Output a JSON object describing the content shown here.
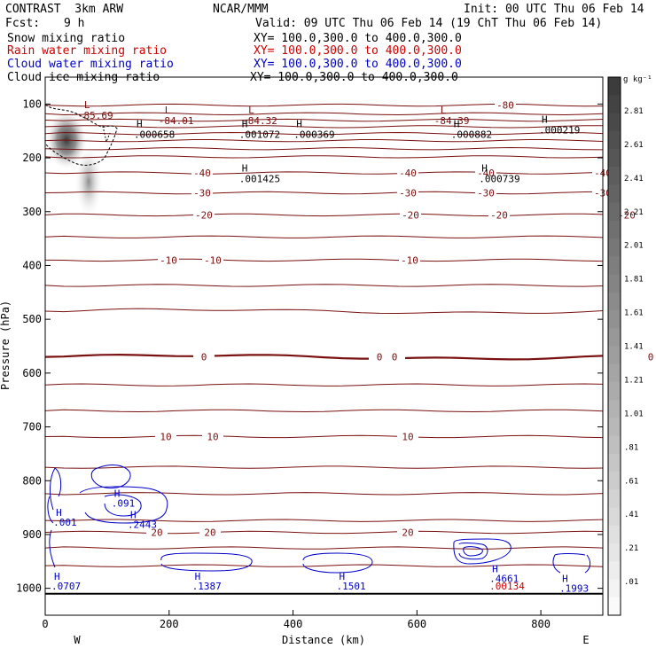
{
  "header": {
    "model": "CONTRAST  3km ARW",
    "center": "NCAR/MMM",
    "init": "Init: 00 UTC Thu 06 Feb 14",
    "fcst_label": "Fcst:",
    "fcst_value": "9 h",
    "valid": "Valid: 09 UTC Thu 06 Feb 14 (19 ChT Thu 06 Feb 14)",
    "fields": [
      {
        "name": "Snow mixing ratio",
        "xy": "XY= 100.0,300.0 to 400.0,300.0"
      },
      {
        "name": "Rain water mixing ratio",
        "xy": "XY= 100.0,300.0 to 400.0,300.0"
      },
      {
        "name": "Cloud water mixing ratio",
        "xy": "XY= 100.0,300.0 to 400.0,300.0"
      },
      {
        "name": "Cloud ice mixing ratio",
        "xy": "XY= 100.0,300.0 to 400.0,300.0"
      }
    ]
  },
  "colors": {
    "temp": "#7a1010",
    "rain": "#d00000",
    "cloud": "#0000c8",
    "black": "#000000"
  },
  "chart_data": {
    "type": "cross-section",
    "xlabel": "Distance (km)",
    "ylabel": "Pressure (hPa)",
    "xlim": [
      0,
      900
    ],
    "ylim": [
      1050,
      50
    ],
    "x_ticks": [
      "0",
      "200",
      "400",
      "600",
      "800"
    ],
    "y_ticks": [
      "100",
      "200",
      "300",
      "400",
      "500",
      "600",
      "700",
      "800",
      "900",
      "1000"
    ],
    "end_labels": {
      "west": "W",
      "east": "E"
    },
    "colorbar": {
      "unit": "g kg⁻¹",
      "labels": [
        "2.81",
        "2.61",
        "2.41",
        "2.21",
        "2.01",
        "1.81",
        "1.61",
        "1.41",
        "1.21",
        "1.01",
        ".81",
        ".61",
        ".41",
        ".21",
        ".01"
      ]
    },
    "temp_contours": [
      {
        "p": 102,
        "label": "-80",
        "at": 570
      },
      {
        "p": 118
      },
      {
        "p": 130
      },
      {
        "p": 142
      },
      {
        "p": 155
      },
      {
        "p": 168
      },
      {
        "p": 183
      },
      {
        "p": 198
      },
      {
        "p": 228,
        "label": "-40",
        "at": [
          228,
          460,
          548,
          680
        ]
      },
      {
        "p": 265,
        "label": "-30",
        "at": [
          228,
          460,
          548,
          680
        ]
      },
      {
        "p": 306,
        "label": "-20",
        "at": [
          230,
          463,
          563,
          707
        ]
      },
      {
        "p": 347
      },
      {
        "p": 390,
        "label": "-10",
        "at": [
          190,
          240,
          462,
          768
        ]
      },
      {
        "p": 437
      },
      {
        "p": 485
      },
      {
        "p": 570,
        "label": "0",
        "at": [
          230,
          428,
          445,
          734
        ]
      },
      {
        "p": 622
      },
      {
        "p": 670
      },
      {
        "p": 718,
        "label": "10",
        "at": [
          187,
          240,
          460,
          771
        ]
      },
      {
        "p": 775
      },
      {
        "p": 824
      },
      {
        "p": 874
      },
      {
        "p": 896,
        "label": "20",
        "at": [
          177,
          237,
          460
        ]
      },
      {
        "p": 925
      },
      {
        "p": 958
      }
    ],
    "ground_p": 1010,
    "lows": [
      {
        "x": 70,
        "p": 88,
        "value": "-85.69"
      },
      {
        "x": 200,
        "p": 98,
        "value": "-84.01"
      },
      {
        "x": 335,
        "p": 98,
        "value": "-84.32"
      },
      {
        "x": 645,
        "p": 98,
        "value": "-84.39"
      }
    ],
    "highs_black": [
      {
        "x": 143,
        "p": 123,
        "value": ".000658"
      },
      {
        "x": 313,
        "p": 123,
        "value": ".001072"
      },
      {
        "x": 401,
        "p": 123,
        "value": ".000369"
      },
      {
        "x": 655,
        "p": 123,
        "value": ".000882"
      },
      {
        "x": 797,
        "p": 115,
        "value": ".000219"
      },
      {
        "x": 313,
        "p": 206,
        "value": ".001425"
      },
      {
        "x": 700,
        "p": 206,
        "value": ".000739"
      }
    ],
    "highs_blue": [
      {
        "x": 107,
        "p": 820,
        "value": ".091"
      },
      {
        "x": 13,
        "p": 856,
        "value": ".001"
      },
      {
        "x": 133,
        "p": 860,
        "value": ".2443"
      },
      {
        "x": 10,
        "p": 974,
        "value": ".0707"
      },
      {
        "x": 237,
        "p": 974,
        "value": ".1387"
      },
      {
        "x": 470,
        "p": 974,
        "value": ".1501"
      },
      {
        "x": 717,
        "p": 960,
        "value": ".4661"
      },
      {
        "x": 830,
        "p": 978,
        "value": ".1993"
      }
    ],
    "rain_max": {
      "x": 717,
      "p": 974,
      "value": ".00134"
    }
  }
}
